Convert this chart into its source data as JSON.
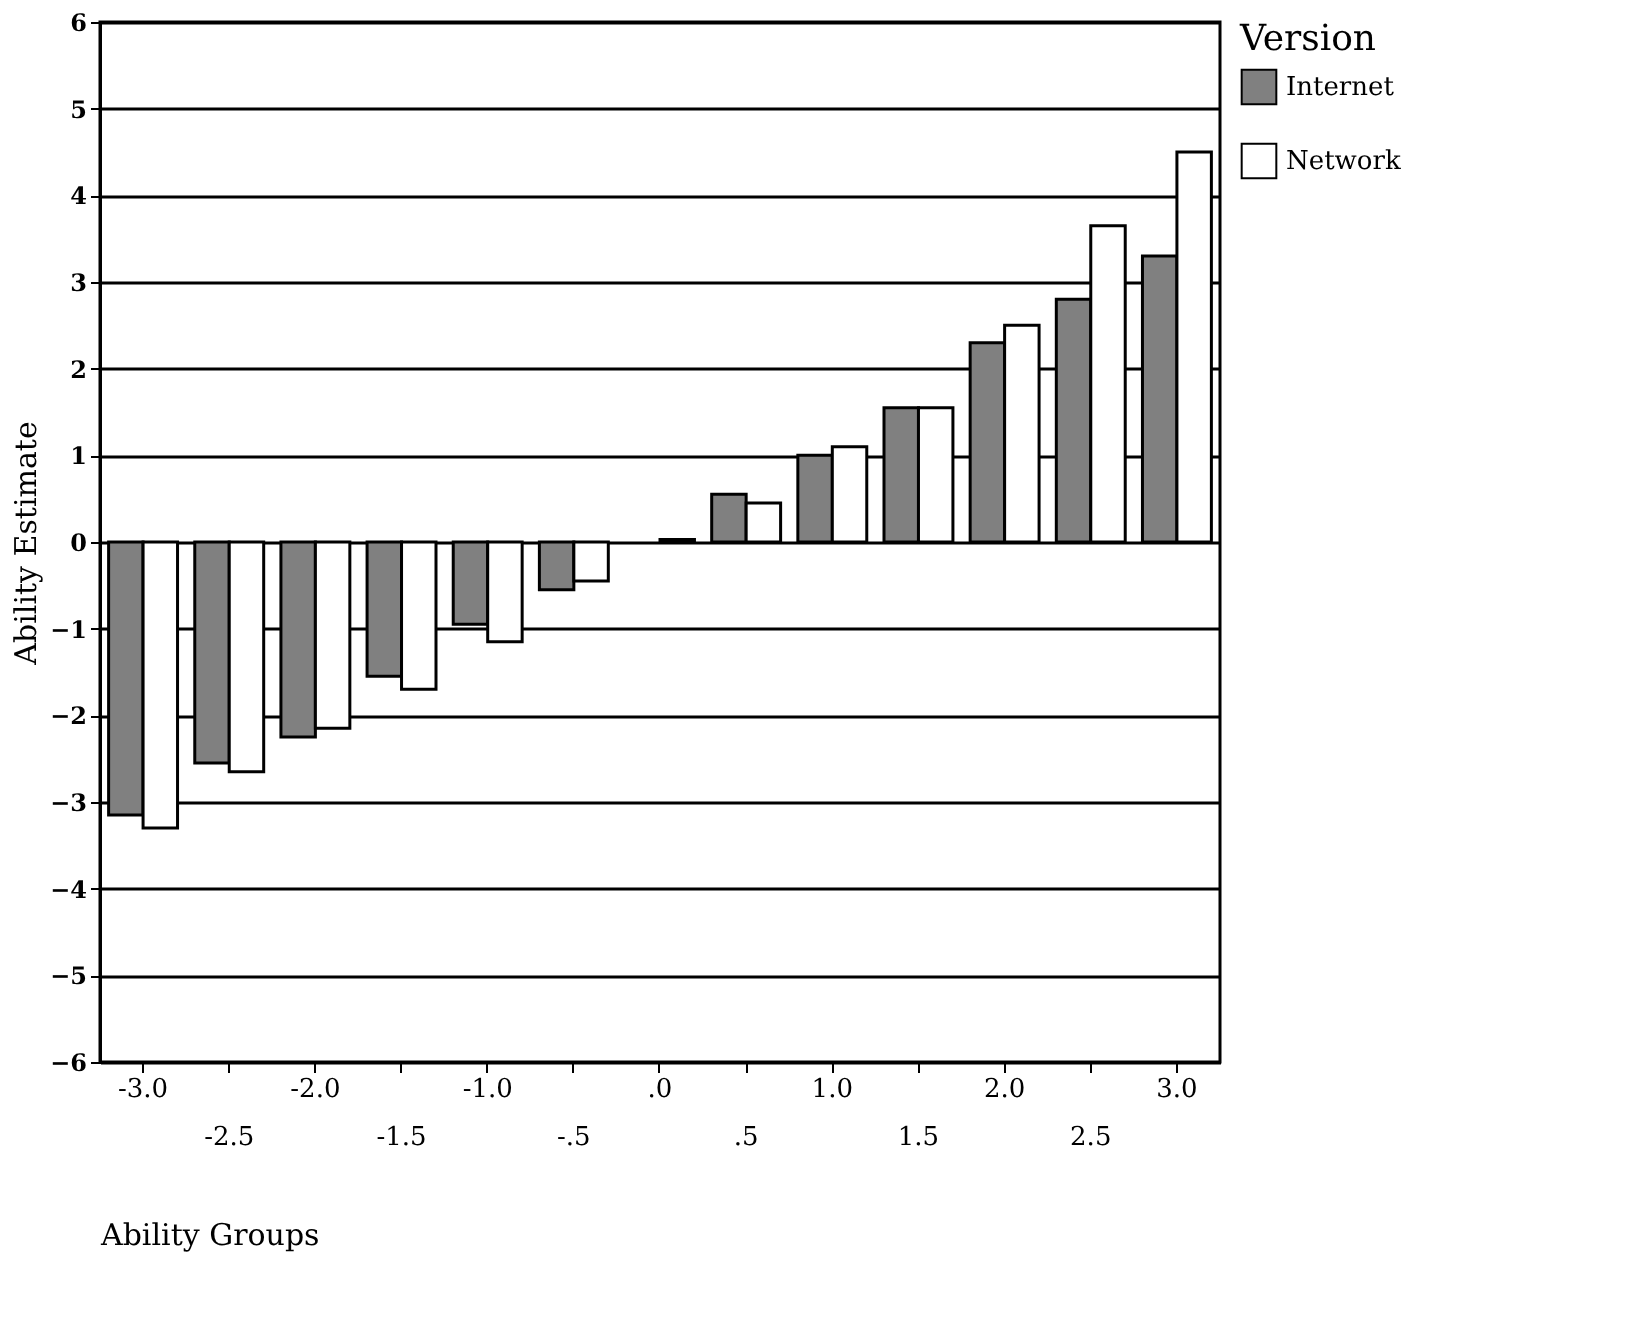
{
  "chart_data": {
    "type": "bar",
    "xlabel": "Ability Groups",
    "ylabel": "Ability Estimate",
    "legend_title": "Version",
    "categories": [
      "-3.0",
      "-2.5",
      "-2.0",
      "-1.5",
      "-1.0",
      "-.5",
      ".0",
      ".5",
      "1.0",
      "1.5",
      "2.0",
      "2.5",
      "3.0"
    ],
    "series": [
      {
        "name": "Internet",
        "color": "#808080",
        "values": [
          -3.15,
          -2.55,
          -2.25,
          -1.55,
          -0.95,
          -0.55,
          null,
          0.55,
          1.0,
          1.55,
          2.3,
          2.8,
          3.3
        ]
      },
      {
        "name": "Network",
        "color": "#ffffff",
        "values": [
          -3.3,
          -2.65,
          -2.15,
          -1.7,
          -1.15,
          -0.45,
          0.03,
          0.45,
          1.1,
          1.55,
          2.5,
          3.65,
          4.5
        ]
      }
    ],
    "ylim": [
      -6,
      6
    ],
    "yticks": [
      -6,
      -5,
      -4,
      -3,
      -2,
      -1,
      0,
      1,
      2,
      3,
      4,
      5,
      6
    ],
    "grid": "y",
    "legend": "right"
  }
}
